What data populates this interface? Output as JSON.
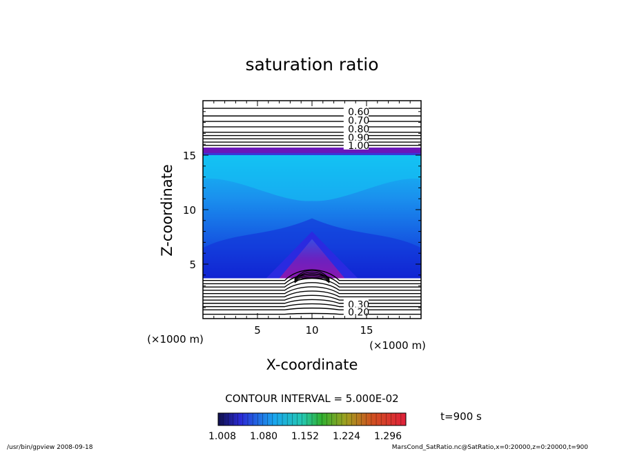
{
  "chart_data": {
    "type": "contour",
    "title": "saturation ratio",
    "xlabel": "X-coordinate",
    "ylabel": "Z-coordinate",
    "x_unit": "(×1000 m)",
    "y_unit": "(×1000 m)",
    "xlim": [
      0,
      20
    ],
    "ylim": [
      0,
      20
    ],
    "x_ticks": [
      5,
      10,
      15
    ],
    "y_ticks": [
      5,
      10,
      15
    ],
    "upper_contour_labels": [
      "0.60",
      "0.70",
      "0.80",
      "0.90",
      "1.00"
    ],
    "lower_contour_labels": [
      "0.30",
      "0.20"
    ],
    "contour_interval": "CONTOUR INTERVAL = 5.000E-02",
    "colorbar_ticks": [
      "1.008",
      "1.080",
      "1.152",
      "1.224",
      "1.296"
    ],
    "time_label": "t=900 s",
    "colors": {
      "low": "#1212d6",
      "mid": "#1a9af0",
      "high": "#7a1ab0",
      "band": "#6a16b8"
    }
  },
  "footer": {
    "left": "/usr/bin/gpview   2008-09-18",
    "right": "MarsCond_SatRatio.nc@SatRatio,x=0:20000,z=0:20000,t=900"
  }
}
